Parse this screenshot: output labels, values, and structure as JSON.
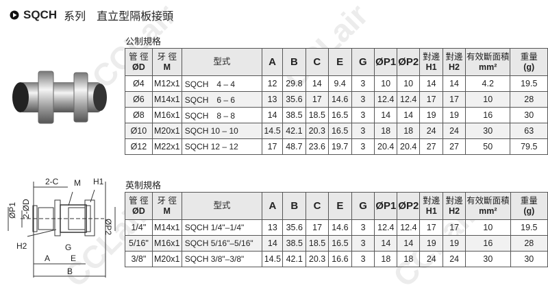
{
  "title": {
    "series": "SQCH",
    "series_label": "系列",
    "name": "直立型隔板接頭"
  },
  "watermark": "CCLair",
  "metric": {
    "label": "公制規格",
    "headers": [
      "管 徑",
      "ØD",
      "牙 徑",
      "M",
      "型式",
      "A",
      "B",
      "C",
      "E",
      "G",
      "ØP1",
      "ØP2",
      "對邊",
      "H1",
      "對邊",
      "H2",
      "有效斷面積",
      "mm²",
      "重量",
      "(g)"
    ],
    "rows": [
      [
        "Ø4",
        "M12x1",
        "SQCH　4 – 4",
        "12",
        "29.8",
        "14",
        "9.4",
        "3",
        "10",
        "10",
        "14",
        "14",
        "4.2",
        "19.5"
      ],
      [
        "Ø6",
        "M14x1",
        "SQCH　6 – 6",
        "13",
        "35.6",
        "17",
        "14.6",
        "3",
        "12.4",
        "12.4",
        "17",
        "17",
        "10",
        "28"
      ],
      [
        "Ø8",
        "M16x1",
        "SQCH　8 – 8",
        "14",
        "38.5",
        "18.5",
        "16.5",
        "3",
        "14",
        "14",
        "19",
        "19",
        "16",
        "30"
      ],
      [
        "Ø10",
        "M20x1",
        "SQCH  10 – 10",
        "14.5",
        "42.1",
        "20.3",
        "16.5",
        "3",
        "18",
        "18",
        "24",
        "24",
        "30",
        "63"
      ],
      [
        "Ø12",
        "M22x1",
        "SQCH  12 – 12",
        "17",
        "48.7",
        "23.6",
        "19.7",
        "3",
        "20.4",
        "20.4",
        "27",
        "27",
        "50",
        "79.5"
      ]
    ]
  },
  "imperial": {
    "label": "英制規格",
    "headers": [
      "管 徑",
      "ØD",
      "牙 徑",
      "M",
      "型式",
      "A",
      "B",
      "C",
      "E",
      "G",
      "ØP1",
      "ØP2",
      "對邊",
      "H1",
      "對邊",
      "H2",
      "有效斷面積",
      "mm²",
      "重量",
      "(g)"
    ],
    "rows": [
      [
        "1/4\"",
        "M14x1",
        "SQCH  1/4\"–1/4\"",
        "13",
        "35.6",
        "17",
        "14.6",
        "3",
        "12.4",
        "12.4",
        "17",
        "17",
        "10",
        "19.5"
      ],
      [
        "5/16\"",
        "M16x1",
        "SQCH 5/16\"–5/16\"",
        "14",
        "38.5",
        "18.5",
        "16.5",
        "3",
        "14",
        "14",
        "19",
        "19",
        "16",
        "28"
      ],
      [
        "3/8\"",
        "M20x1",
        "SQCH  3/8\"–3/8\"",
        "14.5",
        "42.1",
        "20.3",
        "16.6",
        "3",
        "18",
        "18",
        "24",
        "24",
        "30",
        "30"
      ]
    ]
  },
  "diagram": {
    "labels": [
      "2-C",
      "M",
      "H1",
      "ØP1",
      "2-ØD",
      "ØP2",
      "H2",
      "G",
      "A",
      "E",
      "B"
    ]
  }
}
